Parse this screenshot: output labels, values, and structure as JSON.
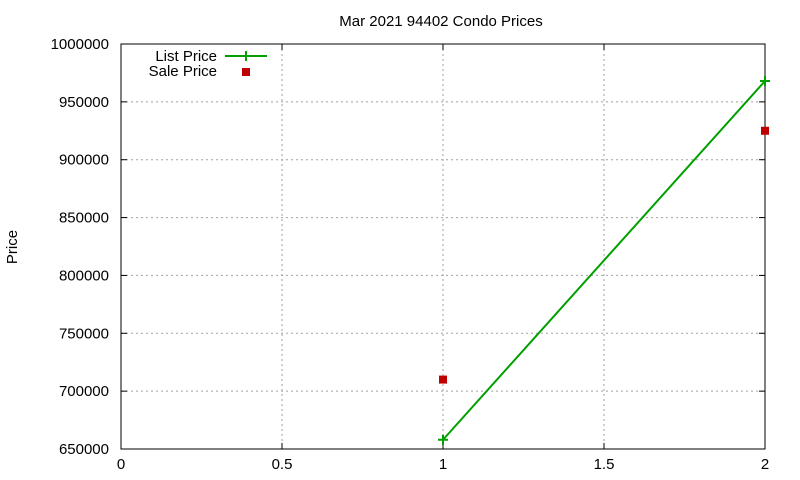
{
  "chart_data": {
    "type": "line",
    "title": "Mar 2021 94402 Condo Prices",
    "xlabel": "",
    "ylabel": "Price",
    "xlim": [
      0,
      2
    ],
    "ylim": [
      650000,
      1000000
    ],
    "x_ticks": [
      0,
      0.5,
      1,
      1.5,
      2
    ],
    "x_tick_labels": [
      "0",
      "0.5",
      "1",
      "1.5",
      "2"
    ],
    "y_ticks": [
      650000,
      700000,
      750000,
      800000,
      850000,
      900000,
      950000,
      1000000
    ],
    "y_tick_labels": [
      "650000",
      "700000",
      "750000",
      "800000",
      "850000",
      "900000",
      "950000",
      "1000000"
    ],
    "grid": true,
    "legend_position": "top-left",
    "series": [
      {
        "name": "List Price",
        "style": "line+plus-points",
        "color": "#00a000",
        "x": [
          1,
          2
        ],
        "y": [
          658000,
          968000
        ]
      },
      {
        "name": "Sale Price",
        "style": "square-points",
        "color": "#c00000",
        "x": [
          1,
          2
        ],
        "y": [
          710000,
          925000
        ]
      }
    ]
  }
}
